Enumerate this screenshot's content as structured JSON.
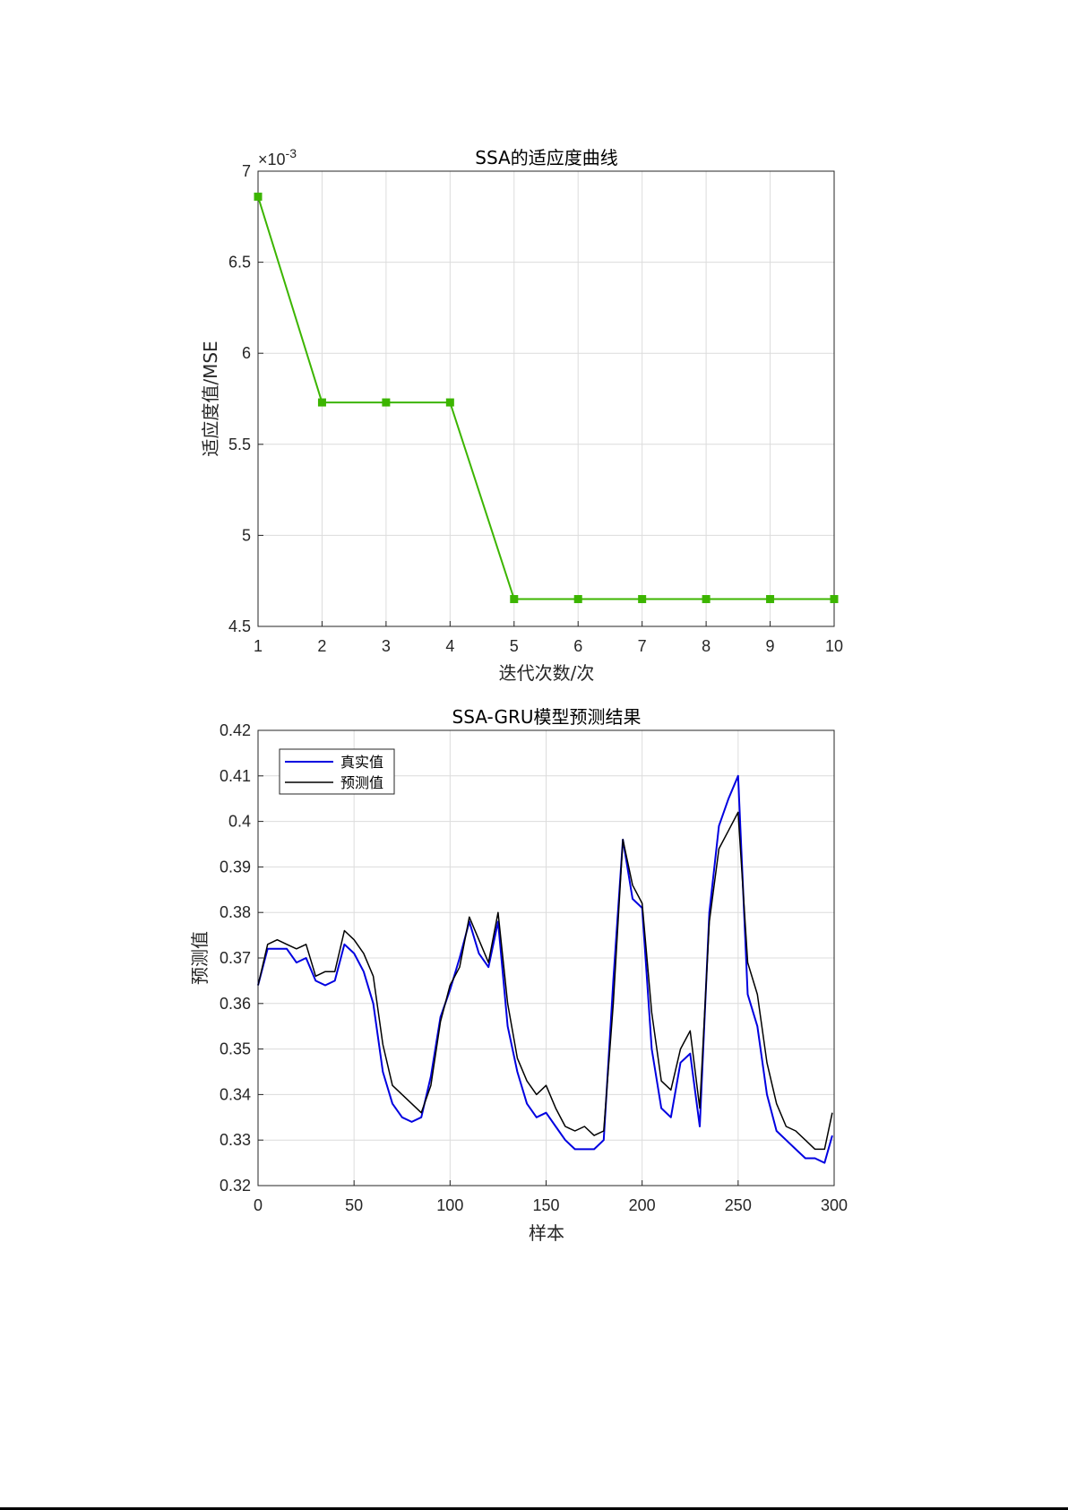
{
  "chart_data": [
    {
      "type": "line",
      "title": "SSA的适应度曲线",
      "xlabel": "迭代次数/次",
      "ylabel": "适应度值/MSE",
      "exponent_label": "×10",
      "exponent_power": "-3",
      "xlim": [
        1,
        10
      ],
      "ylim": [
        4.5,
        7
      ],
      "xticks": [
        "1",
        "2",
        "3",
        "4",
        "5",
        "6",
        "7",
        "8",
        "9",
        "10"
      ],
      "yticks": [
        "4.5",
        "5",
        "5.5",
        "6",
        "6.5",
        "7"
      ],
      "grid": true,
      "series": [
        {
          "color": "#3cb500",
          "marker": "square",
          "x": [
            1,
            2,
            3,
            4,
            5,
            6,
            7,
            8,
            9,
            10
          ],
          "y": [
            6.86,
            5.73,
            5.73,
            5.73,
            4.65,
            4.65,
            4.65,
            4.65,
            4.65,
            4.65
          ]
        }
      ]
    },
    {
      "type": "line",
      "title": "SSA-GRU模型预测结果",
      "xlabel": "样本",
      "ylabel": "预测值",
      "xlim": [
        0,
        300
      ],
      "ylim": [
        0.32,
        0.42
      ],
      "xticks": [
        "0",
        "50",
        "100",
        "150",
        "200",
        "250",
        "300"
      ],
      "yticks": [
        "0.32",
        "0.33",
        "0.34",
        "0.35",
        "0.36",
        "0.37",
        "0.38",
        "0.39",
        "0.4",
        "0.41",
        "0.42"
      ],
      "grid": true,
      "legend": "top-left",
      "x": [
        0,
        5,
        10,
        15,
        20,
        25,
        30,
        35,
        40,
        45,
        50,
        55,
        60,
        65,
        70,
        75,
        80,
        85,
        90,
        95,
        100,
        105,
        110,
        115,
        120,
        125,
        130,
        135,
        140,
        145,
        150,
        155,
        160,
        165,
        170,
        175,
        180,
        185,
        190,
        195,
        200,
        205,
        210,
        215,
        220,
        225,
        230,
        235,
        240,
        245,
        250,
        255,
        260,
        265,
        270,
        275,
        280,
        285,
        290,
        295,
        299
      ],
      "series": [
        {
          "name": "真实值",
          "color": "#0000e0",
          "values": [
            0.364,
            0.372,
            0.372,
            0.372,
            0.369,
            0.37,
            0.365,
            0.364,
            0.365,
            0.373,
            0.371,
            0.367,
            0.36,
            0.345,
            0.338,
            0.335,
            0.334,
            0.335,
            0.344,
            0.357,
            0.363,
            0.37,
            0.378,
            0.371,
            0.368,
            0.378,
            0.355,
            0.345,
            0.338,
            0.335,
            0.336,
            0.333,
            0.33,
            0.328,
            0.328,
            0.328,
            0.33,
            0.365,
            0.396,
            0.383,
            0.381,
            0.35,
            0.337,
            0.335,
            0.347,
            0.349,
            0.333,
            0.38,
            0.399,
            0.405,
            0.41,
            0.362,
            0.355,
            0.34,
            0.332,
            0.33,
            0.328,
            0.326,
            0.326,
            0.325,
            0.331
          ]
        },
        {
          "name": "预测值",
          "color": "#000000",
          "values": [
            0.364,
            0.373,
            0.374,
            0.373,
            0.372,
            0.373,
            0.366,
            0.367,
            0.367,
            0.376,
            0.374,
            0.371,
            0.366,
            0.351,
            0.342,
            0.34,
            0.338,
            0.336,
            0.342,
            0.356,
            0.364,
            0.368,
            0.379,
            0.374,
            0.369,
            0.38,
            0.36,
            0.348,
            0.343,
            0.34,
            0.342,
            0.337,
            0.333,
            0.332,
            0.333,
            0.331,
            0.332,
            0.36,
            0.396,
            0.386,
            0.382,
            0.358,
            0.343,
            0.341,
            0.35,
            0.354,
            0.337,
            0.378,
            0.394,
            0.398,
            0.402,
            0.369,
            0.362,
            0.347,
            0.338,
            0.333,
            0.332,
            0.33,
            0.328,
            0.328,
            0.336
          ]
        }
      ]
    }
  ]
}
